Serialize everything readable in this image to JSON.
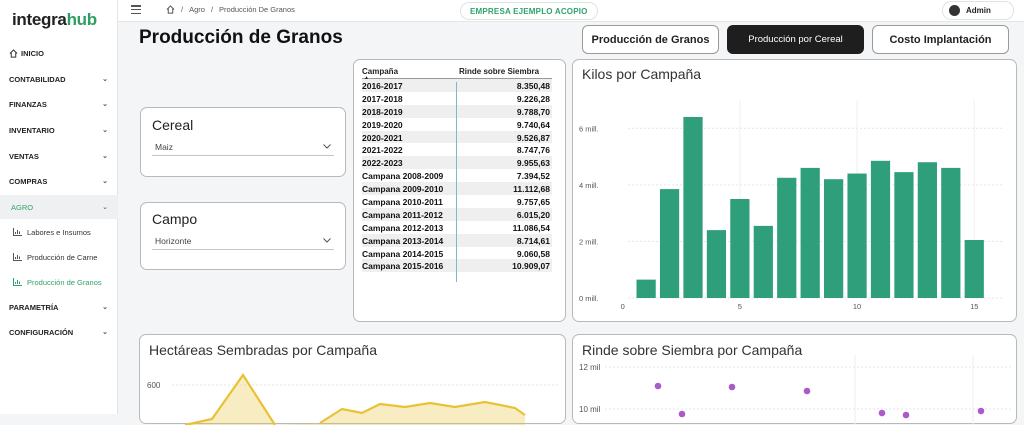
{
  "app": {
    "logo_part1": "integra",
    "logo_part2": "hub"
  },
  "sidebar": {
    "items": [
      {
        "label": "INICIO"
      },
      {
        "label": "CONTABILIDAD"
      },
      {
        "label": "FINANZAS"
      },
      {
        "label": "INVENTARIO"
      },
      {
        "label": "VENTAS"
      },
      {
        "label": "COMPRAS"
      },
      {
        "label": "AGRO"
      },
      {
        "label": "PARAMETRÍA"
      },
      {
        "label": "CONFIGURACIÓN"
      }
    ],
    "sub_items": [
      {
        "label": "Labores e Insumos"
      },
      {
        "label": "Producción de Carne"
      },
      {
        "label": "Producción de Granos"
      }
    ]
  },
  "header": {
    "breadcrumb": [
      "Agro",
      "Producción De Granos"
    ],
    "company": "EMPRESA EJEMPLO ACOPIO",
    "user": "Admin"
  },
  "page": {
    "title": "Producción de Granos",
    "buttons": [
      "Producción de Granos",
      "Producción por Cereal",
      "Costo Implantación"
    ]
  },
  "slicers": [
    {
      "title": "Cereal",
      "value": "Maiz"
    },
    {
      "title": "Campo",
      "value": "Horizonte"
    }
  ],
  "table": {
    "columns": [
      "Campaña",
      "Rinde sobre Siembra"
    ],
    "rows": [
      [
        "2016-2017",
        "8.350,48"
      ],
      [
        "2017-2018",
        "9.226,28"
      ],
      [
        "2018-2019",
        "9.788,70"
      ],
      [
        "2019-2020",
        "9.740,64"
      ],
      [
        "2020-2021",
        "9.526,87"
      ],
      [
        "2021-2022",
        "8.747,76"
      ],
      [
        "2022-2023",
        "9.955,63"
      ],
      [
        "Campana 2008-2009",
        "7.394,52"
      ],
      [
        "Campana 2009-2010",
        "11.112,68"
      ],
      [
        "Campana 2010-2011",
        "9.757,65"
      ],
      [
        "Campana 2011-2012",
        "6.015,20"
      ],
      [
        "Campana 2012-2013",
        "11.086,54"
      ],
      [
        "Campana 2013-2014",
        "8.714,61"
      ],
      [
        "Campana 2014-2015",
        "9.060,58"
      ],
      [
        "Campana 2015-2016",
        "10.909,07"
      ]
    ]
  },
  "colors": {
    "accent": "#2fa36b",
    "bar": "#2f9e7b",
    "area": "#e8c234",
    "dot": "#a95cc9"
  },
  "chart_data": [
    {
      "type": "bar",
      "title": "Kilos por Campaña",
      "x": [
        1,
        2,
        3,
        4,
        5,
        6,
        7,
        8,
        9,
        10,
        11,
        12,
        13,
        14,
        15
      ],
      "values": [
        0.65,
        3.85,
        6.4,
        2.4,
        3.5,
        2.55,
        4.25,
        4.6,
        4.2,
        4.4,
        4.85,
        4.45,
        4.8,
        4.6,
        2.05
      ],
      "ylim": [
        0,
        7
      ],
      "yticks": [
        "0 mill.",
        "2 mill.",
        "4 mill.",
        "6 mill."
      ],
      "xticks": [
        "0",
        "5",
        "10",
        "15"
      ],
      "grid": true
    },
    {
      "type": "area",
      "title": "Hectáreas Sembradas por Campaña",
      "yticks": [
        "600"
      ],
      "grid": true
    },
    {
      "type": "scatter",
      "title": "Rinde sobre Siembra por Campaña",
      "yticks": [
        "12 mil",
        "10 mil"
      ],
      "grid": true
    }
  ]
}
